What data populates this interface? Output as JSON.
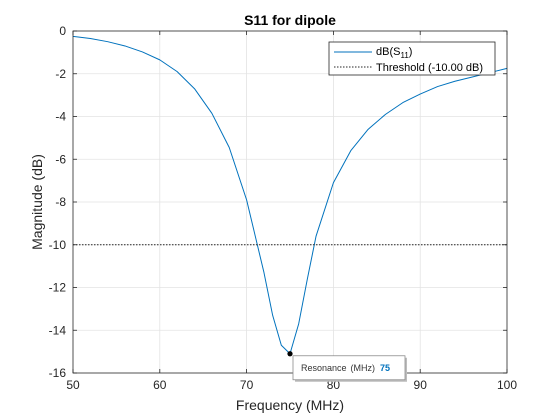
{
  "chart_data": {
    "type": "line",
    "title": "S11 for dipole",
    "xlabel": "Frequency (MHz)",
    "ylabel": "Magnitude (dB)",
    "xlim": [
      50,
      100
    ],
    "ylim": [
      -16,
      0
    ],
    "xticks": [
      50,
      60,
      70,
      80,
      90,
      100
    ],
    "yticks": [
      0,
      -2,
      -4,
      -6,
      -8,
      -10,
      -12,
      -14,
      -16
    ],
    "xtick_labels": [
      "50",
      "60",
      "70",
      "80",
      "90",
      "100"
    ],
    "ytick_labels": [
      "0",
      "-2",
      "-4",
      "-6",
      "-8",
      "-10",
      "-12",
      "-14",
      "-16"
    ],
    "grid": true,
    "legend_position": "top-right",
    "series": [
      {
        "name": "dB(S11)",
        "legend_main": "dB(S",
        "legend_sub": "11",
        "legend_close": ")",
        "color": "#0072bd",
        "style": "solid",
        "x": [
          50,
          52,
          54,
          56,
          58,
          60,
          62,
          64,
          66,
          68,
          70,
          72,
          73,
          74,
          75,
          76,
          77,
          78,
          80,
          82,
          84,
          86,
          88,
          90,
          92,
          94,
          96,
          98,
          100
        ],
        "y": [
          -0.25,
          -0.35,
          -0.5,
          -0.7,
          -0.98,
          -1.35,
          -1.9,
          -2.7,
          -3.85,
          -5.45,
          -7.9,
          -11.3,
          -13.3,
          -14.7,
          -15.1,
          -13.7,
          -11.6,
          -9.6,
          -7.1,
          -5.6,
          -4.6,
          -3.9,
          -3.35,
          -2.95,
          -2.6,
          -2.35,
          -2.15,
          -1.95,
          -1.75
        ]
      },
      {
        "name": "Threshold (-10.00 dB)",
        "color": "#262626",
        "style": "dotted",
        "x": [
          50,
          100
        ],
        "y": [
          -10,
          -10
        ]
      }
    ],
    "annotations": [
      {
        "label": "Resonance",
        "unit": "(MHz)",
        "value": "75",
        "x": 75,
        "y": -15.1
      }
    ]
  }
}
